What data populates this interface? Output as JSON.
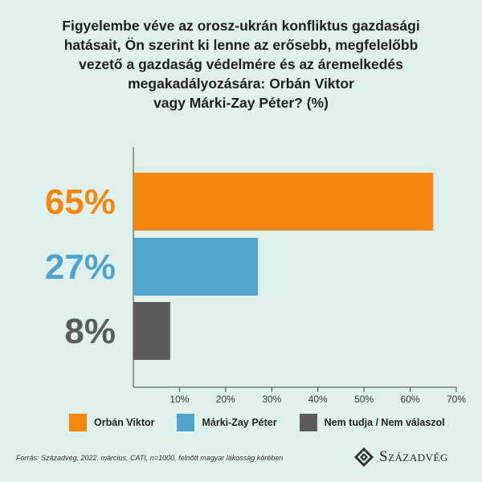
{
  "title_lines": [
    "Figyelembe véve az orosz-ukrán konfliktus gazdasági",
    "hatásait, Ön szerint ki lenne az erősebb, megfelelőbb",
    "vezető a gazdaság védelmére és az áremelkedés",
    "megakadályozására: Orbán Viktor",
    "vagy Márki-Zay Péter? (%)"
  ],
  "chart_data": {
    "type": "bar",
    "orientation": "horizontal",
    "categories": [
      "Orbán Viktor",
      "Márki-Zay Péter",
      "Nem tudja / Nem válaszol"
    ],
    "values": [
      65,
      27,
      8
    ],
    "value_labels": [
      "65%",
      "27%",
      "8%"
    ],
    "colors": [
      "#f7860e",
      "#4fa3cc",
      "#5b5b5b"
    ],
    "xlim": [
      0,
      70
    ],
    "xticks": [
      10,
      20,
      30,
      40,
      50,
      60,
      70
    ],
    "xtick_labels": [
      "10%",
      "20%",
      "30%",
      "40%",
      "50%",
      "60%",
      "70%"
    ],
    "legend_position": "bottom"
  },
  "legend": [
    {
      "label": "Orbán Viktor",
      "color": "#f7860e"
    },
    {
      "label": "Márki-Zay Péter",
      "color": "#4fa3cc"
    },
    {
      "label": "Nem tudja / Nem válaszol",
      "color": "#5b5b5b"
    }
  ],
  "source": "Forrás: Századvég, 2022. március, CATI, n=1000, felnőtt magyar lakosság körében",
  "logo": {
    "text": "Századvég",
    "icon": "diamond-emblem-icon"
  }
}
